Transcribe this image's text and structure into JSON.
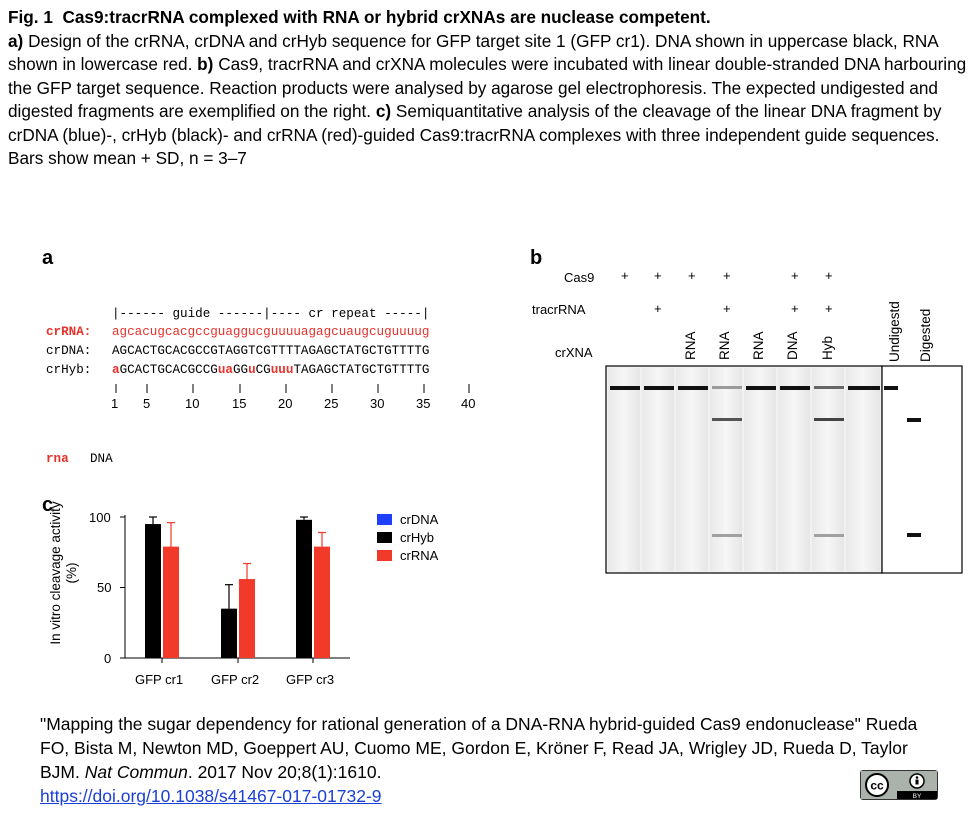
{
  "caption": {
    "fig_label": "Fig. 1",
    "title": "Cas9:tracrRNA complexed with RNA or hybrid crXNAs are nuclease competent.",
    "a_letter": "a)",
    "a_text1": "Design of the crRNA, crDNA and crHyb sequence for GFP target site 1 (GFP cr1). DNA shown in uppercase black, RNA shown in lowercase red.",
    "b_letter": "b)",
    "b_text": "Cas9, tracrRNA and crXNA molecules were incubated with linear double-stranded DNA harbouring the GFP target sequence. Reaction products were analysed by agarose gel electrophoresis. The expected undigested and digested fragments are exemplified on the right.",
    "c_letter": "c)",
    "c_text": "Semiquantitative analysis of the cleavage of the linear DNA fragment by crDNA (blue)-, crHyb (black)- and crRNA (red)-guided Cas9:tracrRNA complexes with three independent guide sequences. Bars show mean + SD, n = 3–7"
  },
  "panel_a": {
    "letter": "a",
    "header": "|------ guide ------|---- cr repeat -----|",
    "crRNA_label": "crRNA:",
    "crRNA_seq": "agcacugcacgccguaggucguuuuagagcuaugcuguuuug",
    "crDNA_label": "crDNA:",
    "crDNA_seq": "AGCACTGCACGCCGTAGGTCGTTTTAGAGCTATGCTGTTTTG",
    "crHyb_label": "crHyb:",
    "crHyb_parts": [
      "a",
      "GCACTGCACGCCG",
      "ua",
      "GG",
      "u",
      "CG",
      "uuu",
      "TAGAGCTATGCTGTTTTG"
    ],
    "ticks": [
      "1",
      "5",
      "10",
      "15",
      "20",
      "25",
      "30",
      "35",
      "40"
    ],
    "legend_rna": "rna",
    "legend_dna": "DNA"
  },
  "panel_b": {
    "letter": "b",
    "row_cas9": "Cas9",
    "row_tracr": "tracrRNA",
    "row_crxna": "crXNA",
    "plus": "+",
    "cas9_lanes": [
      "+",
      "+",
      "+",
      "+",
      "",
      "+",
      "+"
    ],
    "tracr_lanes": [
      "",
      "+",
      "",
      "+",
      "",
      "+",
      "+"
    ],
    "crxna_lanes": [
      "",
      "",
      "RNA",
      "RNA",
      "RNA",
      "DNA",
      "Hyb"
    ],
    "marker_labels": [
      "Undigestd",
      "Digested"
    ]
  },
  "panel_c": {
    "letter": "c",
    "ylabel": "In vitro cleavage activity (%)",
    "legend": [
      "crDNA",
      "crHyb",
      "crRNA"
    ]
  },
  "chart_data": {
    "type": "bar",
    "categories": [
      "GFP cr1",
      "GFP cr2",
      "GFP cr3"
    ],
    "series": [
      {
        "name": "crDNA",
        "color": "#1f3fff",
        "values": [
          0,
          0,
          0
        ],
        "sd": [
          0,
          0,
          0
        ]
      },
      {
        "name": "crHyb",
        "color": "#000000",
        "values": [
          95,
          35,
          98
        ],
        "sd": [
          5,
          17,
          2
        ]
      },
      {
        "name": "crRNA",
        "color": "#f13a2a",
        "values": [
          79,
          56,
          79
        ],
        "sd": [
          17,
          11,
          10
        ]
      }
    ],
    "yticks": [
      "0",
      "50",
      "100"
    ],
    "ylim": [
      0,
      100
    ],
    "ylabel": "In vitro cleavage activity (%)"
  },
  "citation": {
    "text_start": "\"Mapping the sugar dependency for rational generation of a DNA-RNA hybrid-guided Cas9 endonuclease\" Rueda FO, Bista M, Newton MD, Goeppert AU, Cuomo ME, Gordon E, Kröner F, Read JA, Wrigley JD, Rueda D, Taylor BJM.",
    "journal": "Nat Commun",
    "text_end": ". 2017 Nov 20;8(1):1610.",
    "doi": "https://doi.org/10.1038/s41467-017-01732-9",
    "license_by": "BY"
  }
}
